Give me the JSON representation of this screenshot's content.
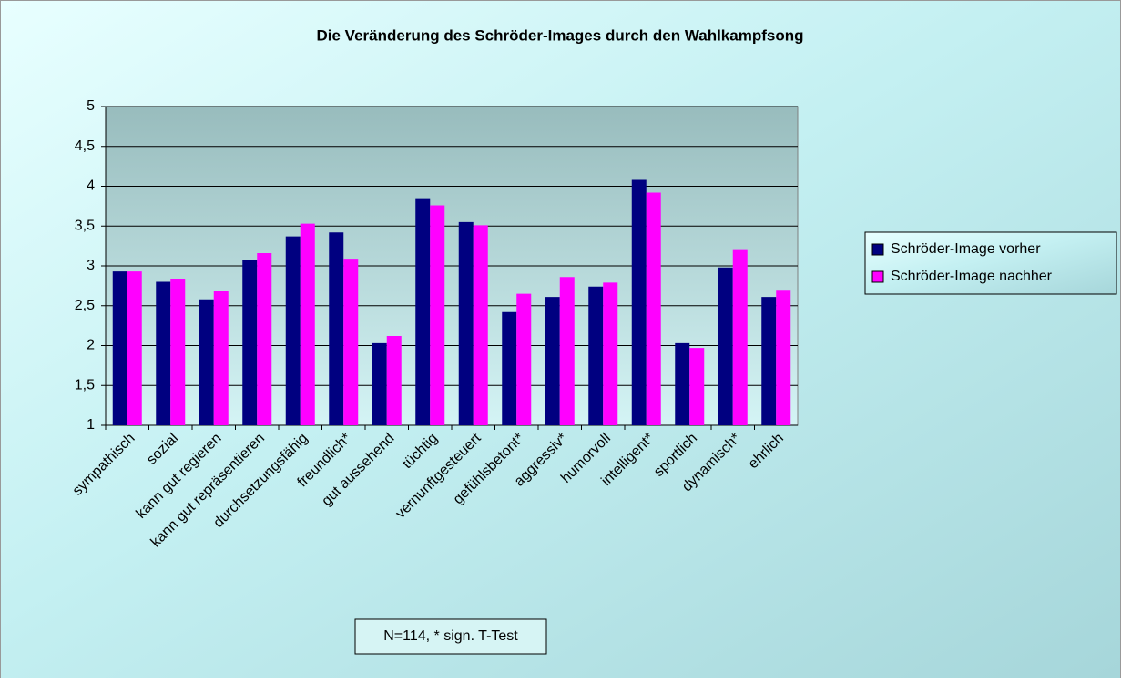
{
  "chart_data": {
    "type": "bar",
    "title": "Die Veränderung des Schröder-Images durch den Wahlkampfsong",
    "categories": [
      "sympathisch",
      "sozial",
      "kann gut regieren",
      "kann gut repräsentieren",
      "durchsetzungsfähig",
      "freundlich*",
      "gut aussehend",
      "tüchtig",
      "vernunftgesteuert",
      "gefühlsbetont*",
      "aggressiv*",
      "humorvoll",
      "intelligent*",
      "sportlich",
      "dynamisch*",
      "ehrlich"
    ],
    "series": [
      {
        "name": "Schröder-Image vorher",
        "color": "#000080",
        "values": [
          2.93,
          2.8,
          2.58,
          3.07,
          3.37,
          3.42,
          2.03,
          3.85,
          3.55,
          2.42,
          2.61,
          2.74,
          4.08,
          2.03,
          2.98,
          2.61
        ]
      },
      {
        "name": "Schröder-Image nachher",
        "color": "#ff00ff",
        "values": [
          2.93,
          2.84,
          2.68,
          3.16,
          3.53,
          3.09,
          2.12,
          3.76,
          3.51,
          2.65,
          2.86,
          2.79,
          3.92,
          1.97,
          3.21,
          2.7
        ]
      }
    ],
    "ylim": [
      1,
      5
    ],
    "yticks": [
      1,
      {
        "value": 1.5,
        "label": "1,5"
      },
      2,
      {
        "value": 2.5,
        "label": "2,5"
      },
      3,
      {
        "value": 3.5,
        "label": "3,5"
      },
      4,
      {
        "value": 4.5,
        "label": "4,5"
      },
      5
    ],
    "grid": true,
    "legend": "right",
    "annotation": "N=114, * sign. T-Test"
  }
}
